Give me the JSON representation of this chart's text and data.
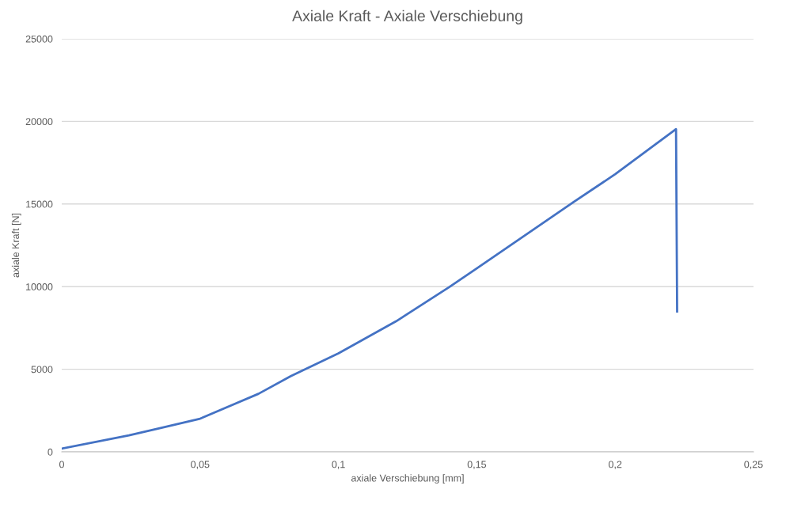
{
  "chart_data": {
    "type": "line",
    "title": "Axiale Kraft - Axiale Verschiebung",
    "xlabel": "axiale Verschiebung [mm]",
    "ylabel": "axiale Kraft [N]",
    "x": [
      0,
      0.0243,
      0.036,
      0.05,
      0.0711,
      0.0828,
      0.1,
      0.1208,
      0.1401,
      0.15,
      0.1839,
      0.2,
      0.222,
      0.2224
    ],
    "series": [
      {
        "color": "#4472c4",
        "values": [
          200,
          1000,
          1450,
          2010,
          3515,
          4590,
          5960,
          7900,
          9980,
          11110,
          15000,
          16800,
          19530,
          8500
        ]
      }
    ],
    "xlim": [
      0,
      0.25
    ],
    "xticks": [
      {
        "value": 0,
        "label": "0"
      },
      {
        "value": 0.05,
        "label": "0,05"
      },
      {
        "value": 0.1,
        "label": "0,1"
      },
      {
        "value": 0.15,
        "label": "0,15"
      },
      {
        "value": 0.2,
        "label": "0,2"
      },
      {
        "value": 0.25,
        "label": "0,25"
      }
    ],
    "ylim": [
      0,
      25000
    ],
    "yticks": [
      0,
      5000,
      10000,
      15000,
      20000,
      25000
    ],
    "grid": "y",
    "marker": "none",
    "line_style": "solid"
  }
}
